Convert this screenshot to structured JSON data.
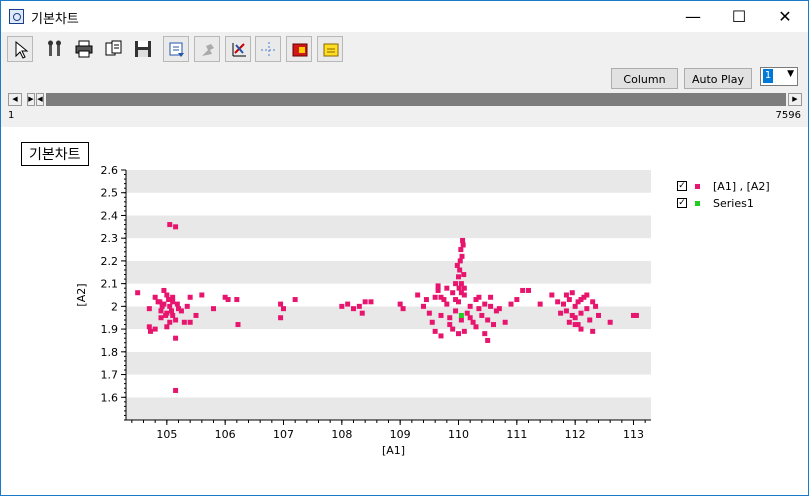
{
  "window": {
    "title": "기본차트",
    "minimize_icon": "minimize-icon",
    "maximize_icon": "maximize-icon",
    "close_icon": "close-icon"
  },
  "toolbar": {
    "icons": [
      "pointer-icon",
      "settings-icon",
      "print-icon",
      "copy-icon",
      "save-icon",
      "export-icon",
      "disabled-tool-icon",
      "axis-icon",
      "crosshair-icon",
      "marker-a-icon",
      "marker-b-icon"
    ]
  },
  "controls": {
    "column_label": "Column",
    "autoplay_label": "Auto Play",
    "series_select_value": "1"
  },
  "range": {
    "min": "1",
    "max": "7596"
  },
  "colors": {
    "series_a": "#e8156e",
    "series_b": "#22cc22",
    "band": "#e8e8e8"
  },
  "chart_data": {
    "type": "scatter",
    "title": "기본차트",
    "xlabel": "[A1]",
    "ylabel": "[A2]",
    "xlim": [
      104.3,
      113.3
    ],
    "ylim": [
      1.5,
      2.6
    ],
    "xticks": [
      "105",
      "106",
      "107",
      "108",
      "109",
      "110",
      "111",
      "112",
      "113"
    ],
    "yticks": [
      "1.6",
      "1.7",
      "1.8",
      "1.9",
      "2",
      "2.1",
      "2.2",
      "2.3",
      "2.4",
      "2.5",
      "2.6"
    ],
    "grid": "horizontal bands",
    "legend": "right",
    "series": [
      {
        "name": "[A1] , [A2]",
        "color": "#e8156e",
        "points": [
          [
            104.5,
            2.06
          ],
          [
            104.8,
            2.04
          ],
          [
            104.7,
            1.99
          ],
          [
            104.85,
            2.02
          ],
          [
            104.9,
            1.98
          ],
          [
            104.95,
            2.01
          ],
          [
            105.0,
            1.97
          ],
          [
            105.05,
            2.0
          ],
          [
            105.1,
            1.96
          ],
          [
            105.0,
            2.05
          ],
          [
            104.9,
            1.95
          ],
          [
            105.1,
            2.02
          ],
          [
            105.2,
            1.99
          ],
          [
            105.15,
            1.94
          ],
          [
            104.95,
            2.07
          ],
          [
            105.05,
            1.93
          ],
          [
            104.8,
            1.9
          ],
          [
            105.0,
            1.91
          ],
          [
            105.25,
            1.98
          ],
          [
            105.1,
            2.04
          ],
          [
            104.92,
            2.0
          ],
          [
            105.03,
            2.03
          ],
          [
            105.08,
            1.98
          ],
          [
            104.98,
            1.96
          ],
          [
            105.18,
            2.01
          ],
          [
            104.88,
            2.02
          ],
          [
            104.7,
            1.91
          ],
          [
            104.72,
            1.89
          ],
          [
            105.3,
            1.93
          ],
          [
            105.4,
            1.93
          ],
          [
            105.5,
            1.96
          ],
          [
            105.6,
            2.05
          ],
          [
            105.4,
            2.04
          ],
          [
            105.35,
            2.0
          ],
          [
            105.15,
            1.86
          ],
          [
            105.05,
            2.36
          ],
          [
            105.15,
            2.35
          ],
          [
            105.15,
            1.63
          ],
          [
            105.8,
            1.99
          ],
          [
            106.0,
            2.04
          ],
          [
            106.05,
            2.03
          ],
          [
            106.2,
            2.03
          ],
          [
            106.22,
            1.92
          ],
          [
            106.95,
            2.01
          ],
          [
            107.0,
            1.99
          ],
          [
            106.95,
            1.95
          ],
          [
            107.2,
            2.03
          ],
          [
            108.0,
            2.0
          ],
          [
            108.1,
            2.01
          ],
          [
            108.2,
            1.99
          ],
          [
            108.3,
            2.0
          ],
          [
            108.4,
            2.02
          ],
          [
            108.35,
            1.97
          ],
          [
            108.5,
            2.02
          ],
          [
            109.0,
            2.01
          ],
          [
            109.05,
            1.99
          ],
          [
            109.3,
            2.05
          ],
          [
            109.4,
            2.0
          ],
          [
            109.5,
            1.97
          ],
          [
            109.6,
            2.04
          ],
          [
            109.65,
            2.07
          ],
          [
            109.7,
            1.96
          ],
          [
            109.75,
            2.03
          ],
          [
            109.8,
            2.01
          ],
          [
            109.85,
            1.95
          ],
          [
            109.9,
            2.06
          ],
          [
            109.95,
            1.98
          ],
          [
            110.0,
            2.02
          ],
          [
            110.05,
            1.94
          ],
          [
            110.1,
            2.05
          ],
          [
            110.15,
            1.97
          ],
          [
            110.2,
            2.0
          ],
          [
            110.25,
            1.93
          ],
          [
            110.3,
            2.03
          ],
          [
            110.35,
            1.99
          ],
          [
            110.4,
            1.96
          ],
          [
            110.45,
            2.01
          ],
          [
            110.5,
            1.94
          ],
          [
            110.55,
            2.0
          ],
          [
            110.6,
            1.92
          ],
          [
            110.65,
            1.98
          ],
          [
            109.9,
            1.9
          ],
          [
            110.0,
            1.88
          ],
          [
            110.1,
            1.89
          ],
          [
            109.7,
            1.87
          ],
          [
            109.85,
            1.92
          ],
          [
            110.3,
            1.91
          ],
          [
            110.45,
            1.88
          ],
          [
            110.5,
            1.85
          ],
          [
            110.55,
            2.04
          ],
          [
            110.7,
            1.99
          ],
          [
            110.8,
            1.93
          ],
          [
            109.65,
            2.09
          ],
          [
            109.6,
            1.89
          ],
          [
            109.55,
            1.93
          ],
          [
            109.45,
            2.03
          ],
          [
            109.7,
            2.04
          ],
          [
            109.8,
            2.08
          ],
          [
            109.95,
            2.03
          ],
          [
            110.2,
            1.95
          ],
          [
            110.35,
            2.04
          ],
          [
            110.05,
            2.1
          ],
          [
            110.0,
            2.13
          ],
          [
            110.02,
            2.16
          ],
          [
            110.03,
            2.2
          ],
          [
            110.04,
            2.25
          ],
          [
            110.06,
            2.22
          ],
          [
            110.08,
            2.27
          ],
          [
            110.07,
            2.29
          ],
          [
            109.98,
            2.18
          ],
          [
            110.09,
            2.14
          ],
          [
            110.01,
            2.08
          ],
          [
            110.05,
            2.06
          ],
          [
            109.95,
            2.1
          ],
          [
            110.1,
            2.08
          ],
          [
            110.9,
            2.01
          ],
          [
            111.0,
            2.03
          ],
          [
            111.1,
            2.07
          ],
          [
            111.2,
            2.07
          ],
          [
            111.4,
            2.01
          ],
          [
            111.6,
            2.05
          ],
          [
            111.7,
            2.02
          ],
          [
            111.8,
            2.01
          ],
          [
            111.85,
            1.98
          ],
          [
            111.9,
            2.03
          ],
          [
            111.95,
            1.96
          ],
          [
            112.0,
            2.0
          ],
          [
            112.05,
            2.02
          ],
          [
            112.1,
            1.97
          ],
          [
            112.15,
            2.04
          ],
          [
            111.9,
            1.93
          ],
          [
            111.85,
            2.05
          ],
          [
            112.0,
            1.95
          ],
          [
            112.1,
            2.03
          ],
          [
            112.2,
            1.99
          ],
          [
            112.3,
            2.02
          ],
          [
            112.4,
            1.96
          ],
          [
            112.35,
            2.0
          ],
          [
            111.95,
            2.06
          ],
          [
            112.05,
            1.92
          ],
          [
            112.25,
            1.94
          ],
          [
            112.0,
            1.92
          ],
          [
            112.1,
            1.9
          ],
          [
            112.3,
            1.89
          ],
          [
            112.6,
            1.93
          ],
          [
            113.0,
            1.96
          ],
          [
            113.05,
            1.96
          ],
          [
            111.75,
            1.97
          ],
          [
            112.2,
            2.05
          ]
        ]
      },
      {
        "name": "Series1",
        "color": "#22cc22",
        "points": [
          [
            110.05,
            1.96
          ]
        ]
      }
    ]
  }
}
